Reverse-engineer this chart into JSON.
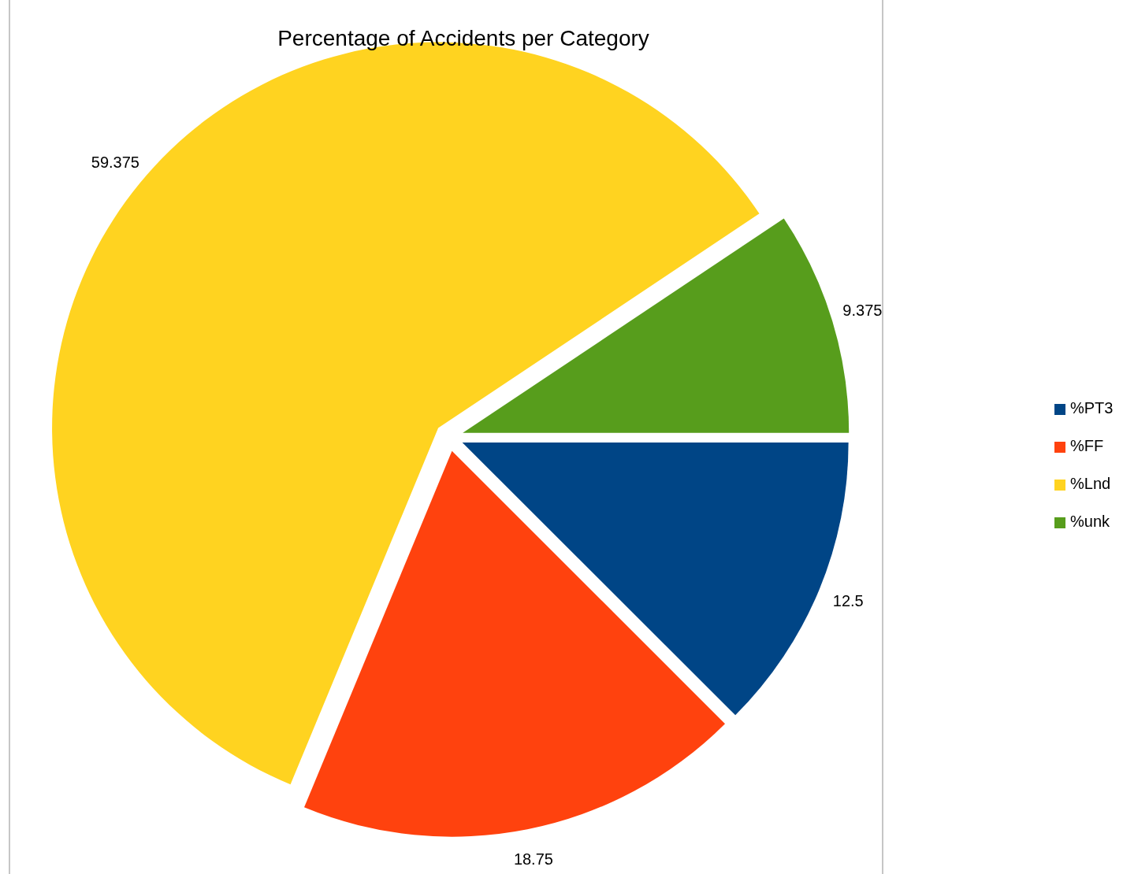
{
  "chart_data": {
    "type": "pie",
    "title": "Percentage of Accidents per Category",
    "categories": [
      "%PT3",
      "%FF",
      "%Lnd",
      "%unk"
    ],
    "values": [
      12.5,
      18.75,
      59.375,
      9.375
    ],
    "colors": [
      "#004586",
      "#ff420e",
      "#ffd320",
      "#579d1c"
    ],
    "data_labels": true,
    "legend": "right"
  }
}
